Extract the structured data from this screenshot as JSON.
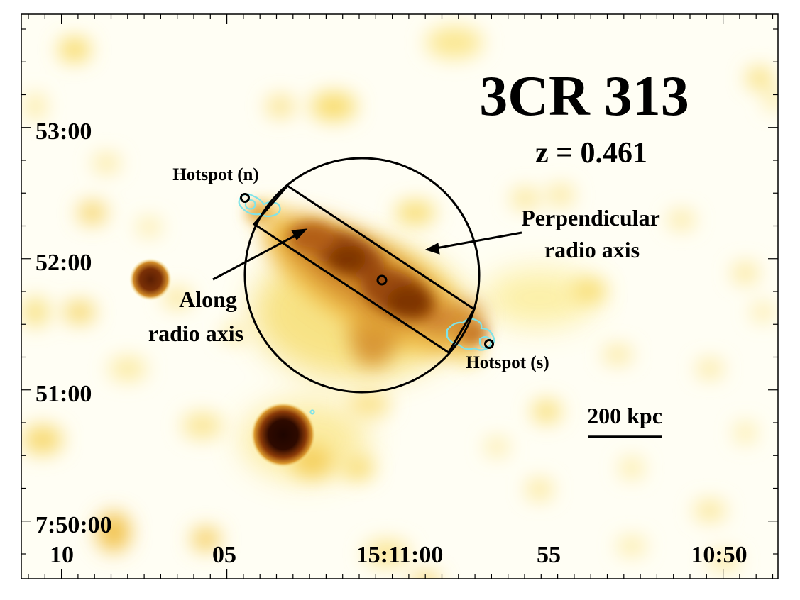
{
  "image": {
    "title": "3CR 313",
    "redshift_label": "z = 0.461",
    "colormap": [
      "#fffce8",
      "#fdf1a0",
      "#f5cf52",
      "#dd9a2c",
      "#b25a12",
      "#6e2a04",
      "#1e0500"
    ],
    "contour_color": "#7fe3e8"
  },
  "axes": {
    "y_ticks": [
      "53:00",
      "52:00",
      "51:00",
      "7:50:00"
    ],
    "x_ticks": [
      "10",
      "05",
      "15:11:00",
      "55",
      "10:50"
    ]
  },
  "annotations": {
    "hotspot_n": "Hotspot (n)",
    "hotspot_s": "Hotspot (s)",
    "perpendicular_line1": "Perpendicular",
    "perpendicular_line2": "radio axis",
    "along_line1": "Along",
    "along_line2": "radio axis",
    "scalebar_label": "200 kpc"
  }
}
